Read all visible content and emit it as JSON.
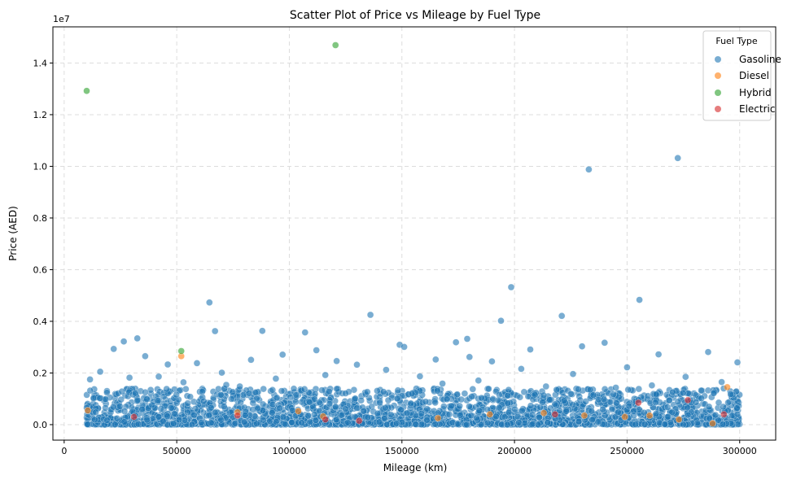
{
  "chart_data": {
    "type": "scatter",
    "title": "Scatter Plot of Price vs Mileage by Fuel Type",
    "xlabel": "Mileage (km)",
    "ylabel": "Price (AED)",
    "offset_label": "1e7",
    "xlim": [
      -5000,
      316000
    ],
    "ylim": [
      -0.06,
      1.54
    ],
    "y_scale_factor": 10000000,
    "x_ticks": [
      0,
      50000,
      100000,
      150000,
      200000,
      250000,
      300000
    ],
    "x_tick_labels": [
      "0",
      "50000",
      "100000",
      "150000",
      "200000",
      "250000",
      "300000"
    ],
    "y_ticks": [
      0,
      0.2,
      0.4,
      0.6,
      0.8,
      1.0,
      1.2,
      1.4
    ],
    "y_tick_labels": [
      "0.0",
      "0.2",
      "0.4",
      "0.6",
      "0.8",
      "1.0",
      "1.2",
      "1.4"
    ],
    "grid": true,
    "legend": {
      "title": "Fuel Type",
      "placement": "top-right",
      "entries": [
        "Gasoline",
        "Diesel",
        "Hybrid",
        "Electric"
      ]
    },
    "series": [
      {
        "name": "Gasoline",
        "color": "#1f77b4",
        "x": [
          233000,
          272500,
          198500,
          255500,
          64500,
          136000,
          194000,
          221000,
          88000,
          67000,
          107000,
          240000,
          32500,
          26500,
          112000,
          149000,
          179000,
          174000,
          22000,
          36000,
          180000,
          97000,
          59000,
          151000,
          165000,
          207000,
          230000,
          286000,
          299000,
          46000,
          121000,
          16000,
          83000,
          190000,
          264000,
          42000,
          70000,
          226000,
          250000,
          130000,
          158000,
          11500,
          143000,
          203000,
          276000,
          94000,
          53000,
          116000,
          184000,
          292000,
          214000,
          29000,
          72000,
          168000,
          245000,
          102000,
          139000,
          78000,
          261000,
          19000,
          296000,
          125000,
          197000,
          56000,
          235000,
          283000,
          170000,
          62000,
          109000,
          154000,
          218000,
          39000,
          268000,
          86000,
          188000,
          133000,
          14000,
          49000,
          253000,
          211000
        ],
        "y": [
          0.988,
          1.032,
          0.532,
          0.483,
          0.473,
          0.425,
          0.402,
          0.421,
          0.363,
          0.362,
          0.357,
          0.317,
          0.334,
          0.322,
          0.288,
          0.309,
          0.332,
          0.319,
          0.293,
          0.265,
          0.262,
          0.271,
          0.238,
          0.301,
          0.252,
          0.291,
          0.303,
          0.281,
          0.241,
          0.233,
          0.246,
          0.205,
          0.251,
          0.245,
          0.272,
          0.186,
          0.201,
          0.196,
          0.222,
          0.232,
          0.187,
          0.175,
          0.212,
          0.216,
          0.185,
          0.178,
          0.164,
          0.192,
          0.171,
          0.165,
          0.148,
          0.182,
          0.154,
          0.159,
          0.143,
          0.139,
          0.131,
          0.148,
          0.152,
          0.124,
          0.118,
          0.121,
          0.112,
          0.108,
          0.115,
          0.102,
          0.098,
          0.091,
          0.087,
          0.082,
          0.079,
          0.076,
          0.068,
          0.063,
          0.058,
          0.052,
          0.048,
          0.042,
          0.035,
          0.028
        ]
      },
      {
        "name": "Diesel",
        "color": "#ff7f0e",
        "x": [
          10500,
          52000,
          77000,
          104000,
          115000,
          166000,
          189000,
          213000,
          231000,
          249000,
          260000,
          273000,
          288000,
          294500
        ],
        "y": [
          0.055,
          0.265,
          0.048,
          0.052,
          0.032,
          0.025,
          0.04,
          0.045,
          0.035,
          0.03,
          0.035,
          0.02,
          0.005,
          0.145
        ]
      },
      {
        "name": "Hybrid",
        "color": "#2ca02c",
        "x": [
          120500,
          10000,
          52000
        ],
        "y": [
          1.469,
          1.292,
          0.285
        ]
      },
      {
        "name": "Electric",
        "color": "#d62728",
        "x": [
          31000,
          77000,
          116000,
          131000,
          218000,
          255000,
          277000,
          293000
        ],
        "y": [
          0.03,
          0.035,
          0.02,
          0.015,
          0.04,
          0.085,
          0.095,
          0.04
        ]
      }
    ],
    "dense_cloud": {
      "series": "Gasoline",
      "x_range": [
        10000,
        300000
      ],
      "y_range": [
        0.0,
        0.14
      ],
      "count": 2600,
      "seed": 7
    }
  }
}
